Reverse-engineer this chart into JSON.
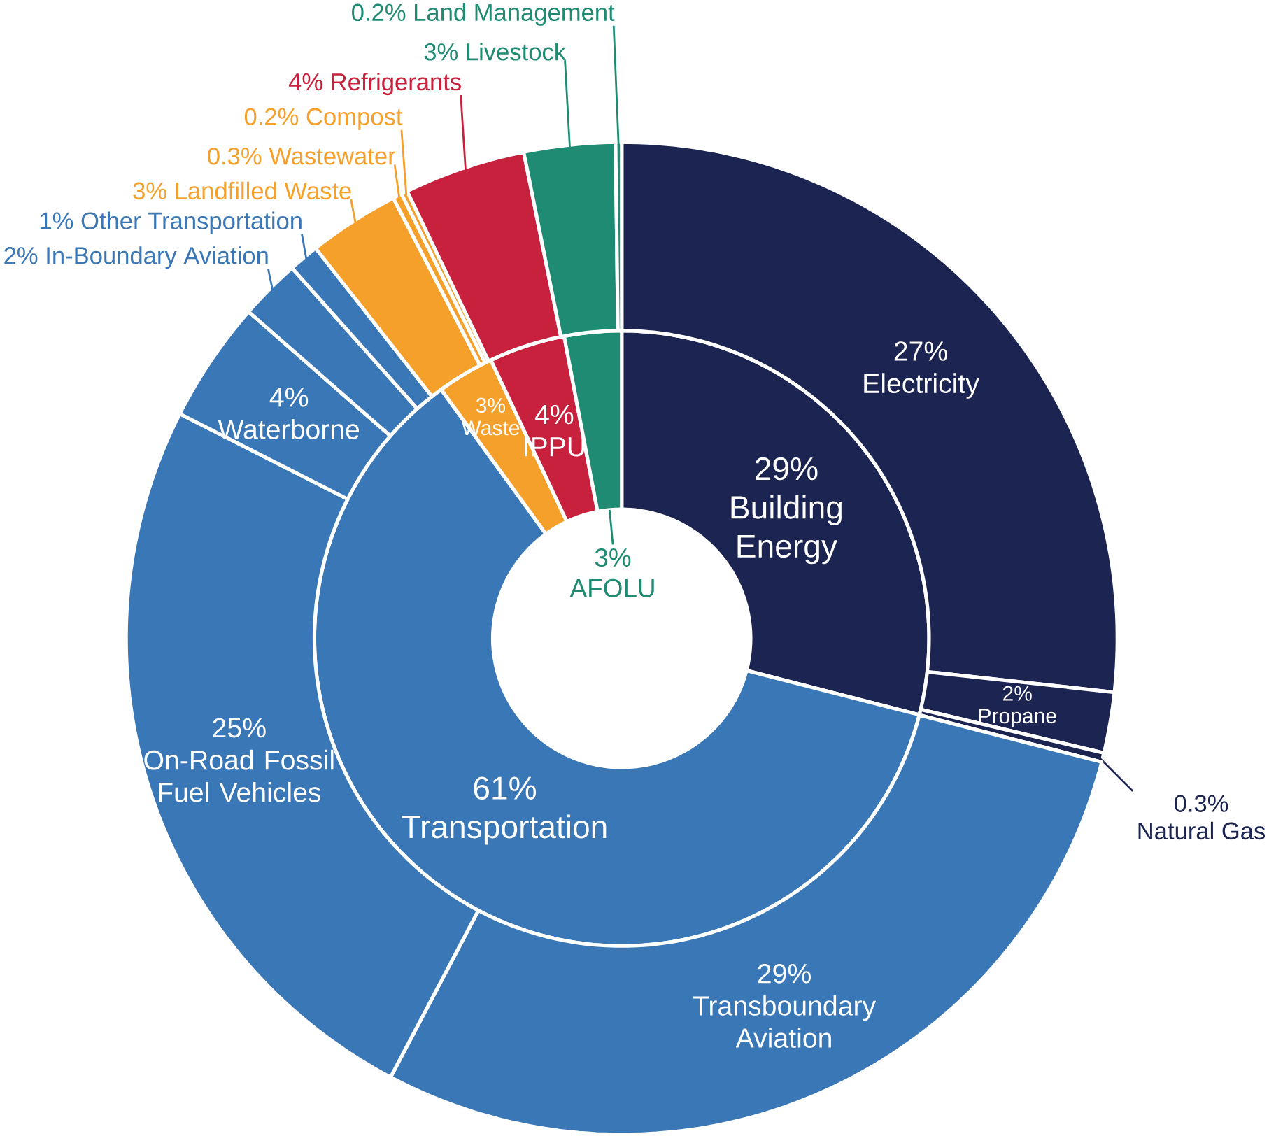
{
  "chart_data": [
    {
      "type": "donut",
      "categories": [
        "Building Energy",
        "Transportation",
        "Waste",
        "IPPU",
        "AFOLU"
      ],
      "values": [
        29,
        61,
        3,
        4,
        3
      ],
      "value_labels": [
        "29%",
        "61%",
        "3%",
        "4%",
        "3%"
      ],
      "colors": [
        "#1c2451",
        "#3a77b6",
        "#f5a02a",
        "#c8213d",
        "#1f8b72"
      ]
    },
    {
      "type": "donut",
      "categories": [
        "Electricity",
        "Propane",
        "Natural Gas",
        "Transboundary Aviation",
        "On-Road Fossil Fuel Vehicles",
        "Waterborne",
        "In-Boundary Aviation",
        "Other Transportation",
        "Landfilled Waste",
        "Wastewater",
        "Compost",
        "Refrigerants",
        "Livestock",
        "Land Management"
      ],
      "values": [
        27,
        2,
        0.3,
        29,
        25,
        4,
        2,
        1,
        3,
        0.3,
        0.2,
        4,
        3,
        0.2
      ],
      "value_labels": [
        "27%",
        "2%",
        "0.3%",
        "29%",
        "25%",
        "4%",
        "2%",
        "1%",
        "3%",
        "0.3%",
        "0.2%",
        "4%",
        "3%",
        "0.2%"
      ],
      "colors": [
        "#1c2451",
        "#1c2451",
        "#1c2451",
        "#3a77b6",
        "#3a77b6",
        "#3a77b6",
        "#3a77b6",
        "#3a77b6",
        "#f5a02a",
        "#f5a02a",
        "#f5a02a",
        "#c8213d",
        "#1f8b72",
        "#1f8b72"
      ]
    }
  ]
}
